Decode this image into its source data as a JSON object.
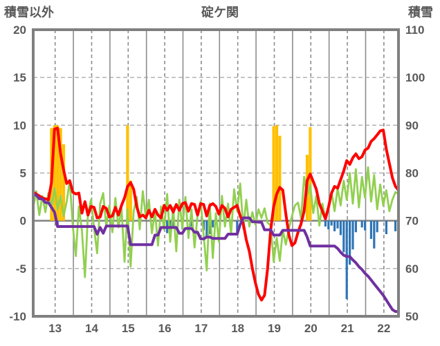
{
  "header": {
    "left_axis_title": "積雪以外",
    "chart_title": "碇ケ関",
    "right_axis_title": "積雪"
  },
  "chart_data": {
    "type": "line+bar",
    "title": "碇ケ関",
    "station": "碇ケ関",
    "left_axis": {
      "label": "積雪以外",
      "min": -10,
      "max": 20,
      "ticks": [
        "20",
        "15",
        "10",
        "5",
        "0",
        "-5",
        "-10"
      ],
      "tick_values": [
        20,
        15,
        10,
        5,
        0,
        -5,
        -10
      ]
    },
    "right_axis": {
      "label": "積雪",
      "min": 50,
      "max": 110,
      "ticks": [
        "110",
        "100",
        "90",
        "80",
        "70",
        "60",
        "50"
      ],
      "tick_values": [
        110,
        100,
        90,
        80,
        70,
        60,
        50
      ]
    },
    "x_axis": {
      "labels": [
        "13",
        "14",
        "15",
        "16",
        "17",
        "18",
        "19",
        "20",
        "21",
        "22"
      ],
      "note": "monthly points Jul2012-Jun2022; dashed gridlines at January (under labels), solid gridlines at July boundaries"
    },
    "grid": {
      "h_dashed_values": [
        15,
        10,
        5,
        -5
      ],
      "zero_value": 0
    },
    "colors": {
      "red": "#FF0000",
      "green": "#92D050",
      "purple": "#7030A0",
      "orange": "#FFC000",
      "blue": "#2E75B6",
      "grid": "#8C8C8C",
      "grid_light": "#ADADAD",
      "frame": "#808080",
      "text": "#595959"
    },
    "series": [
      {
        "name": "orange-bars",
        "type": "bar",
        "color": "#FFC000",
        "barwidth": 4.2,
        "points": [
          [
            6,
            9.7
          ],
          [
            7,
            10
          ],
          [
            8,
            10
          ],
          [
            9,
            9.7
          ],
          [
            10,
            8
          ],
          [
            31,
            10
          ],
          [
            32,
            4.2
          ],
          [
            79,
            9.9
          ],
          [
            80,
            10
          ],
          [
            81,
            8.9
          ],
          [
            90,
            6.9
          ],
          [
            91,
            9.8
          ]
        ]
      },
      {
        "name": "blue-bars",
        "type": "bar",
        "color": "#2E75B6",
        "barwidth": 3.2,
        "points": [
          [
            8,
            -0.5
          ],
          [
            43,
            -0.9
          ],
          [
            44,
            -1.3
          ],
          [
            45,
            -1.5
          ],
          [
            46,
            -0.8
          ],
          [
            49,
            -0.9
          ],
          [
            52,
            -0.6
          ],
          [
            56,
            -1.0
          ],
          [
            57,
            -1.8
          ],
          [
            58,
            -1.4
          ],
          [
            59,
            -0.7
          ],
          [
            67,
            -1.3
          ],
          [
            88,
            -0.5
          ],
          [
            96,
            -0.6
          ],
          [
            97,
            -0.9
          ],
          [
            98,
            -0.5
          ],
          [
            99,
            -1.1
          ],
          [
            100,
            -0.8
          ],
          [
            101,
            -1.5
          ],
          [
            102,
            -3.3
          ],
          [
            103,
            -8.2
          ],
          [
            104,
            -4.6
          ],
          [
            105,
            -3.0
          ],
          [
            106,
            -1.2
          ],
          [
            108,
            -0.7
          ],
          [
            109,
            -1.0
          ],
          [
            111,
            -1.9
          ],
          [
            112,
            -2.9
          ],
          [
            113,
            -1.2
          ],
          [
            116,
            -1.4
          ],
          [
            119,
            -1.1
          ]
        ]
      },
      {
        "name": "green-line",
        "type": "line",
        "color": "#92D050",
        "width": 2.8,
        "values": [
          1.4,
          3.1,
          0.6,
          2.6,
          0.9,
          2.9,
          1.4,
          3.4,
          1.2,
          2.6,
          0.5,
          2.0,
          4.2,
          -0.5,
          -3.7,
          1.5,
          -1.0,
          -5.9,
          0.8,
          2.2,
          -0.8,
          -3.4,
          1.8,
          2.9,
          -0.6,
          1.6,
          -1.2,
          2.4,
          -0.7,
          1.4,
          -4.3,
          1.2,
          -4.8,
          1.0,
          2.5,
          -0.9,
          3.1,
          0.4,
          2.2,
          -1.3,
          1.0,
          -2.6,
          1.5,
          -0.9,
          2.8,
          -2.2,
          1.4,
          -3.2,
          2.2,
          -0.8,
          2.5,
          -1.8,
          1.2,
          -2.8,
          0.6,
          2.0,
          -1.5,
          -5.2,
          1.8,
          -3.9,
          0.8,
          -2.2,
          2.6,
          -0.6,
          1.8,
          -1.4,
          3.3,
          1.0,
          3.9,
          -0.8,
          2.2,
          -0.6,
          0.9,
          -0.4,
          1.2,
          0.3,
          1.3,
          -0.2,
          -0.5,
          -4.3,
          -1.8,
          -4.2,
          -1.0,
          -2.5,
          -0.8,
          0.5,
          1.6,
          1.9,
          0.2,
          4.6,
          2.6,
          3.8,
          0.8,
          2.6,
          -0.5,
          1.8,
          0.2,
          1.4,
          3.0,
          1.0,
          3.4,
          1.6,
          4.2,
          2.2,
          5.0,
          1.8,
          5.4,
          1.4,
          4.6,
          2.4,
          5.6,
          2.0,
          4.8,
          1.2,
          3.8,
          1.6,
          3.2,
          1.0,
          2.2,
          3.0,
          2.8
        ]
      },
      {
        "name": "red-line",
        "type": "line",
        "color": "#FF0000",
        "width": 4,
        "values": [
          3.0,
          2.8,
          2.6,
          2.4,
          2.3,
          2.2,
          4.0,
          9.6,
          9.7,
          7.0,
          5.3,
          3.9,
          4.2,
          3.0,
          2.8,
          2.9,
          0.8,
          2.0,
          0.6,
          1.5,
          1.4,
          0.3,
          0.4,
          1.5,
          1.3,
          0.4,
          0.5,
          1.4,
          0.6,
          1.6,
          2.4,
          3.6,
          4.0,
          3.3,
          1.5,
          0.4,
          0.6,
          0.3,
          1.1,
          0.4,
          1.2,
          0.6,
          0.3,
          1.6,
          1.1,
          1.6,
          0.9,
          1.7,
          1.1,
          1.8,
          1.9,
          1.0,
          1.8,
          1.7,
          0.6,
          1.8,
          1.7,
          0.5,
          1.6,
          1.8,
          1.5,
          0.7,
          1.6,
          1.3,
          0.4,
          1.2,
          1.4,
          1.6,
          0.5,
          -0.3,
          -2.0,
          -3.2,
          -5.0,
          -6.5,
          -7.7,
          -8.3,
          -7.8,
          -5.0,
          -1.0,
          1.5,
          2.8,
          3.5,
          3.2,
          0.7,
          -1.5,
          -2.6,
          -2.3,
          -1.2,
          -0.3,
          1.0,
          4.2,
          4.9,
          4.1,
          3.3,
          1.8,
          1.0,
          0.2,
          1.4,
          2.9,
          3.6,
          3.4,
          4.3,
          5.2,
          6.3,
          5.9,
          6.6,
          7.0,
          6.5,
          6.7,
          7.4,
          7.6,
          8.3,
          8.6,
          9.0,
          9.4,
          9.5,
          7.5,
          6.0,
          4.5,
          3.6,
          3.2
        ]
      },
      {
        "name": "purple-line",
        "type": "line",
        "color": "#7030A0",
        "width": 4,
        "values": [
          2.7,
          2.7,
          2.3,
          2.3,
          1.9,
          1.9,
          1.4,
          0.9,
          -0.6,
          -0.6,
          -0.6,
          -0.6,
          -0.6,
          -0.6,
          -0.6,
          -0.6,
          -0.6,
          -0.6,
          -0.6,
          -0.6,
          -0.6,
          -1.4,
          -0.7,
          -1.3,
          -0.55,
          -0.55,
          -0.55,
          -0.55,
          -0.55,
          -0.55,
          -0.55,
          -0.55,
          -2.5,
          -2.5,
          -2.5,
          -2.5,
          -2.5,
          -2.5,
          -2.5,
          -2.5,
          -1.5,
          -1.5,
          -0.7,
          -0.7,
          -0.7,
          -0.7,
          -0.7,
          -0.7,
          -1.3,
          -1.3,
          -0.8,
          -0.8,
          -0.8,
          -1.2,
          -1.2,
          -1.9,
          -1.9,
          -1.7,
          -1.7,
          -1.85,
          -1.85,
          -1.85,
          -1.85,
          -1.85,
          -1.4,
          -1.4,
          -1.4,
          -1.4,
          -0.4,
          0.3,
          0.3,
          0.3,
          -0.1,
          -0.1,
          -0.15,
          -0.15,
          -0.95,
          -0.95,
          -0.95,
          -1.5,
          -1.5,
          -1.5,
          -1.0,
          -1.0,
          -1.0,
          -1.0,
          -1.0,
          -1.0,
          -1.0,
          -1.0,
          -1.7,
          -2.65,
          -2.65,
          -2.65,
          -2.65,
          -2.65,
          -2.65,
          -2.65,
          -2.65,
          -2.65,
          -2.9,
          -3.3,
          -3.6,
          -3.75,
          -3.75,
          -4.1,
          -4.4,
          -4.8,
          -5.1,
          -5.5,
          -5.8,
          -6.2,
          -6.6,
          -7.0,
          -7.4,
          -7.8,
          -8.3,
          -8.8,
          -9.3,
          -9.5,
          -9.5
        ]
      }
    ]
  }
}
